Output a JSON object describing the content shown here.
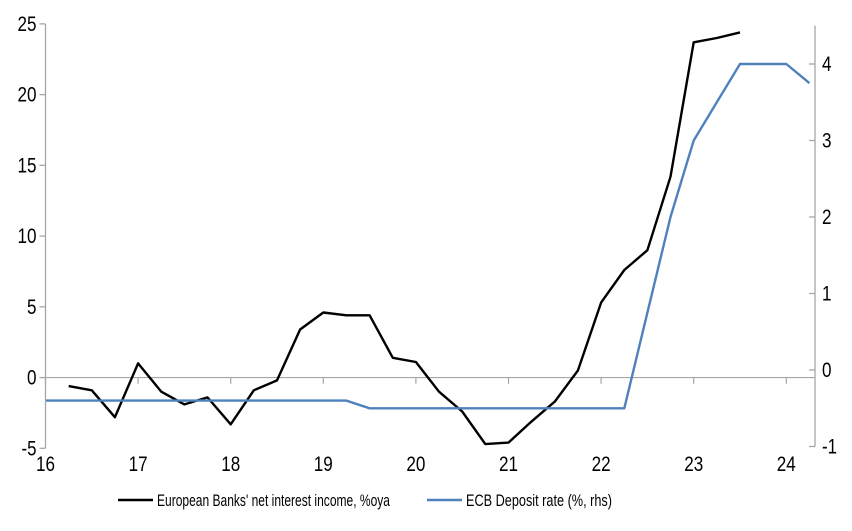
{
  "chart_data": {
    "type": "line",
    "title": "",
    "xlabel": "",
    "ylabel_left": "",
    "ylabel_right": "",
    "grid": "zero-line-only",
    "legend_position": "bottom",
    "axis_color": "#a6a6a6",
    "tick_text_color": "#000000",
    "x_axis": {
      "min": 16,
      "max": 24.31,
      "ticks": [
        16,
        17,
        18,
        19,
        20,
        21,
        22,
        23,
        24
      ],
      "tick_labels": [
        "16",
        "17",
        "18",
        "19",
        "20",
        "21",
        "22",
        "23",
        "24"
      ]
    },
    "left_axis": {
      "min": -5,
      "max": 25,
      "ticks": [
        -5,
        0,
        5,
        10,
        15,
        20,
        25
      ],
      "tick_labels": [
        "-5",
        "0",
        "5",
        "10",
        "15",
        "20",
        "25"
      ]
    },
    "right_axis": {
      "min": -1,
      "max": 4.5,
      "ticks": [
        -1,
        0,
        1,
        2,
        3,
        4
      ],
      "tick_labels": [
        "-1",
        "0",
        "1",
        "2",
        "3",
        "4"
      ]
    },
    "series": [
      {
        "name": "European Banks' net interest income, %oya",
        "axis": "left",
        "color": "#000000",
        "stroke_width": 2.4,
        "x": [
          16.25,
          16.5,
          16.75,
          17.0,
          17.25,
          17.5,
          17.75,
          18.0,
          18.25,
          18.5,
          18.75,
          19.0,
          19.25,
          19.5,
          19.75,
          20.0,
          20.25,
          20.5,
          20.75,
          21.0,
          21.25,
          21.5,
          21.75,
          22.0,
          22.25,
          22.5,
          22.75,
          23.0,
          23.25,
          23.5
        ],
        "values": [
          -0.6,
          -0.9,
          -2.8,
          1.0,
          -1.0,
          -1.9,
          -1.4,
          -3.3,
          -0.9,
          -0.2,
          3.4,
          4.6,
          4.4,
          4.4,
          1.4,
          1.1,
          -1.0,
          -2.4,
          -4.7,
          -4.6,
          -3.1,
          -1.7,
          0.5,
          5.3,
          7.6,
          9.0,
          14.2,
          23.7,
          24.0,
          24.4
        ]
      },
      {
        "name": "ECB Deposit rate (%, rhs)",
        "axis": "right",
        "color": "#4f81bd",
        "stroke_width": 2.4,
        "x": [
          16.0,
          16.25,
          16.5,
          16.75,
          17.0,
          17.25,
          17.5,
          17.75,
          18.0,
          18.25,
          18.5,
          18.75,
          19.0,
          19.25,
          19.5,
          19.75,
          20.0,
          20.25,
          20.5,
          20.75,
          21.0,
          21.25,
          21.5,
          21.75,
          22.0,
          22.25,
          22.5,
          22.75,
          23.0,
          23.25,
          23.5,
          23.75,
          24.0,
          24.25
        ],
        "values": [
          -0.4,
          -0.4,
          -0.4,
          -0.4,
          -0.4,
          -0.4,
          -0.4,
          -0.4,
          -0.4,
          -0.4,
          -0.4,
          -0.4,
          -0.4,
          -0.4,
          -0.5,
          -0.5,
          -0.5,
          -0.5,
          -0.5,
          -0.5,
          -0.5,
          -0.5,
          -0.5,
          -0.5,
          -0.5,
          -0.5,
          0.75,
          2.0,
          3.0,
          3.5,
          4.0,
          4.0,
          4.0,
          3.75
        ]
      }
    ]
  },
  "legend": {
    "items": [
      {
        "label": "European Banks' net interest income, %oya",
        "color": "#000000"
      },
      {
        "label": "ECB Deposit rate (%, rhs)",
        "color": "#4f81bd"
      }
    ]
  }
}
